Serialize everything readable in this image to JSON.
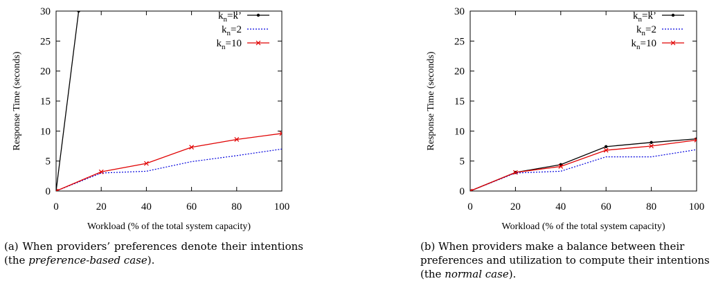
{
  "chart_data": [
    {
      "type": "line",
      "xlabel": "Workload (% of the total system capacity)",
      "ylabel": "Response Time (seconds)",
      "xlim": [
        0,
        100
      ],
      "ylim": [
        0,
        30
      ],
      "xticks": [
        "0",
        "20",
        "40",
        "60",
        "80",
        "100"
      ],
      "yticks": [
        "0",
        "5",
        "10",
        "15",
        "20",
        "25",
        "30"
      ],
      "legend_position": "top-right",
      "x": [
        0,
        20,
        40,
        60,
        80,
        100
      ],
      "series": [
        {
          "name_base": "k",
          "name_sub": "n",
          "name_suffix": "=k’",
          "color": "#000000",
          "dash": "",
          "marker": "dot",
          "x": [
            0,
            10
          ],
          "values": [
            0,
            30
          ]
        },
        {
          "name_base": "k",
          "name_sub": "n",
          "name_suffix": "=2",
          "color": "#0000dd",
          "dash": "2,2",
          "marker": "none",
          "x": [
            0,
            20,
            40,
            60,
            80,
            100
          ],
          "values": [
            0,
            3.0,
            3.3,
            4.9,
            5.9,
            7.0
          ]
        },
        {
          "name_base": "k",
          "name_sub": "n",
          "name_suffix": "=10",
          "color": "#e00000",
          "dash": "",
          "marker": "cross",
          "x": [
            0,
            20,
            40,
            60,
            80,
            100
          ],
          "values": [
            0,
            3.2,
            4.6,
            7.3,
            8.6,
            9.6
          ]
        }
      ],
      "caption": {
        "label": "(a)",
        "text_before": "When providers’ preferences denote their intentions (the ",
        "emphasis": "preference-based case",
        "text_after": ")."
      }
    },
    {
      "type": "line",
      "xlabel": "Workload (% of the total system capacity)",
      "ylabel": "Response Time (seconds)",
      "xlim": [
        0,
        100
      ],
      "ylim": [
        0,
        30
      ],
      "xticks": [
        "0",
        "20",
        "40",
        "60",
        "80",
        "100"
      ],
      "yticks": [
        "0",
        "5",
        "10",
        "15",
        "20",
        "25",
        "30"
      ],
      "legend_position": "top-right",
      "x": [
        0,
        20,
        40,
        60,
        80,
        100
      ],
      "series": [
        {
          "name_base": "k",
          "name_sub": "n",
          "name_suffix": "=k’",
          "color": "#000000",
          "dash": "",
          "marker": "dot",
          "x": [
            0,
            20,
            40,
            60,
            80,
            100
          ],
          "values": [
            0,
            3.1,
            4.4,
            7.4,
            8.1,
            8.7
          ]
        },
        {
          "name_base": "k",
          "name_sub": "n",
          "name_suffix": "=2",
          "color": "#0000dd",
          "dash": "2,2",
          "marker": "none",
          "x": [
            0,
            20,
            40,
            60,
            80,
            100
          ],
          "values": [
            0,
            3.0,
            3.3,
            5.7,
            5.7,
            6.9
          ]
        },
        {
          "name_base": "k",
          "name_sub": "n",
          "name_suffix": "=10",
          "color": "#e00000",
          "dash": "",
          "marker": "cross",
          "x": [
            0,
            20,
            40,
            60,
            80,
            100
          ],
          "values": [
            0,
            3.1,
            4.1,
            6.8,
            7.5,
            8.5
          ]
        }
      ],
      "caption": {
        "label": "(b)",
        "text_before": "When providers make a balance between their preferences and utilization to compute their intentions (the ",
        "emphasis": "normal case",
        "text_after": ")."
      }
    }
  ]
}
